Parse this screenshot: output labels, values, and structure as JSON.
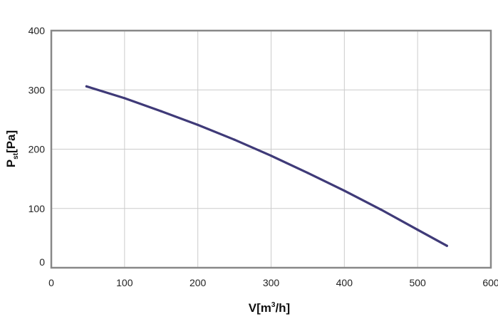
{
  "chart_data": {
    "type": "line",
    "title": "",
    "xlabel": {
      "base": "V",
      "open": "[m",
      "sup": "3",
      "close": "/h]"
    },
    "ylabel": {
      "base": "P",
      "sub": "st",
      "rest": "[Pa]"
    },
    "xlim": [
      0,
      600
    ],
    "ylim": [
      0,
      400
    ],
    "xticks": [
      "0",
      "100",
      "200",
      "300",
      "400",
      "500",
      "600"
    ],
    "yticks": [
      "0",
      "100",
      "200",
      "300",
      "400"
    ],
    "grid": true,
    "legend": "none",
    "colors": {
      "line": "#3f3a78",
      "grid": "#cccccc",
      "frame": "#888888"
    },
    "series": [
      {
        "x": [
          48,
          100,
          150,
          200,
          250,
          300,
          350,
          400,
          450,
          500,
          540
        ],
        "y": [
          306,
          286,
          264,
          241,
          216,
          189,
          160,
          130,
          98,
          64,
          37
        ]
      }
    ]
  }
}
